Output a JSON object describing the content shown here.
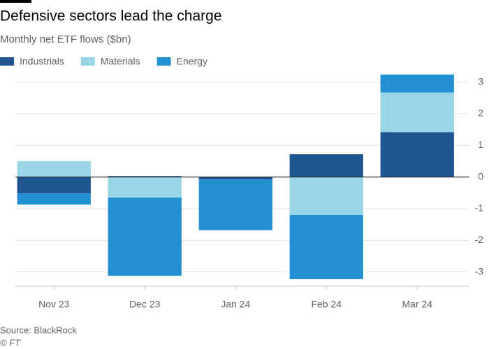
{
  "chart_data": {
    "type": "stacked_bar",
    "title": "Defensive sectors lead the charge",
    "subtitle": "Monthly net ETF flows ($bn)",
    "categories": [
      "Nov 23",
      "Dec 23",
      "Jan 24",
      "Feb 24",
      "Mar 24"
    ],
    "series": [
      {
        "name": "Industrials",
        "color": "#1f5591",
        "values": [
          -0.52,
          0.03,
          -0.08,
          0.72,
          1.42
        ]
      },
      {
        "name": "Materials",
        "color": "#99d5e6",
        "values": [
          0.5,
          -0.65,
          0,
          -1.2,
          1.25
        ]
      },
      {
        "name": "Energy",
        "color": "#2391d1",
        "values": [
          -0.35,
          -2.47,
          -1.6,
          -2.03,
          0.57
        ]
      }
    ],
    "ylim": [
      -3.45,
      3.3
    ],
    "yticks": [
      -3,
      -2,
      -1,
      0,
      1,
      2,
      3
    ],
    "grid": true,
    "source": "Source: BlackRock",
    "copyright": "© FT"
  }
}
